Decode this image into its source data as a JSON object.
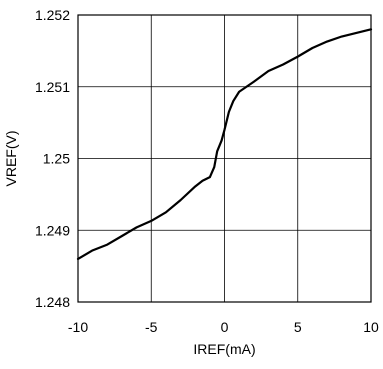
{
  "chart_data": {
    "type": "line",
    "title": "",
    "xlabel": "IREF(mA)",
    "ylabel": "VREF(V)",
    "xlim": [
      -10,
      10
    ],
    "ylim": [
      1.248,
      1.252
    ],
    "grid": true,
    "x_ticks": [
      -10,
      -5,
      0,
      5,
      10
    ],
    "x_tick_labels": [
      "-10",
      "-5",
      "0",
      "5",
      "10"
    ],
    "y_ticks": [
      1.248,
      1.249,
      1.25,
      1.251,
      1.252
    ],
    "y_tick_labels": [
      "1.248",
      "1.249",
      "1.25",
      "1.251",
      "1.252"
    ],
    "series": [
      {
        "x": [
          -10,
          -9,
          -8,
          -7,
          -6,
          -5,
          -4,
          -3,
          -2,
          -1.5,
          -1,
          -0.7,
          -0.5,
          -0.2,
          0,
          0.3,
          0.6,
          1,
          1.5,
          2,
          3,
          4,
          5,
          6,
          7,
          8,
          9,
          10
        ],
        "y": [
          1.2486,
          1.24872,
          1.2488,
          1.24892,
          1.24904,
          1.24913,
          1.24925,
          1.24942,
          1.24961,
          1.24969,
          1.24974,
          1.24988,
          1.2501,
          1.25025,
          1.2504,
          1.25065,
          1.2508,
          1.25093,
          1.251,
          1.25107,
          1.25122,
          1.25131,
          1.25142,
          1.25154,
          1.25163,
          1.2517,
          1.25175,
          1.2518
        ],
        "color": "#000000"
      }
    ],
    "colors": {
      "line": "#000000",
      "grid": "#000000",
      "axes": "#000000"
    }
  }
}
